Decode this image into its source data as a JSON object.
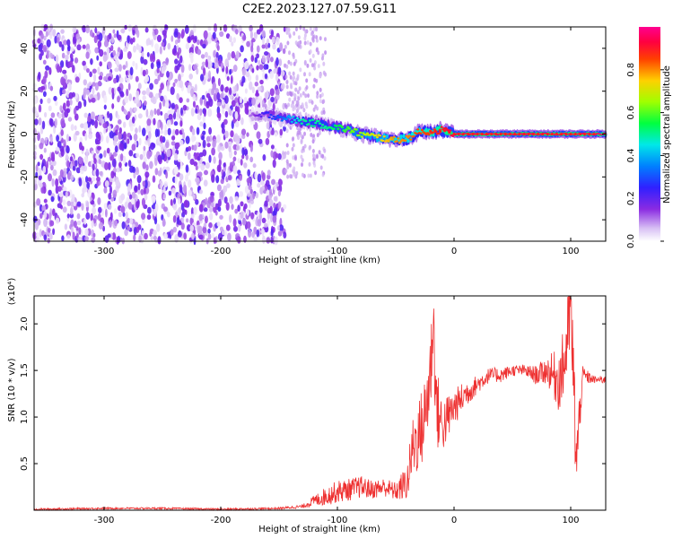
{
  "title": "C2E2.2023.127.07.59.G11",
  "colors": {
    "line": "#ee3030",
    "axis": "#000000",
    "colormap": [
      "#ffffff",
      "#cda8f0",
      "#8a2be2",
      "#3a00ff",
      "#0060ff",
      "#00e0ff",
      "#00ff60",
      "#7fff00",
      "#ffff00",
      "#ff8000",
      "#ff0000",
      "#ff00a0"
    ]
  },
  "chart_data": [
    {
      "type": "heatmap",
      "title": "C2E2.2023.127.07.59.G11",
      "xlabel": "Height of straight line (km)",
      "ylabel": "Frequency (Hz)",
      "xlim": [
        -360,
        130
      ],
      "ylim": [
        -50,
        50
      ],
      "x_ticks": [
        -300,
        -200,
        -100,
        0,
        100
      ],
      "x_tick_labels": [
        "-300",
        "-200",
        "-100",
        "0",
        "100"
      ],
      "y_ticks": [
        -40,
        -20,
        0,
        20,
        40
      ],
      "y_tick_labels": [
        "-40",
        "-20",
        "0",
        "20",
        "40"
      ],
      "colorbar": {
        "label": "Normalized spectral amplitude",
        "range": [
          0,
          1
        ],
        "ticks": [
          0.0,
          0.2,
          0.4,
          0.6,
          0.8
        ],
        "tick_labels": [
          "0.0",
          "0.2",
          "0.4",
          "0.6",
          "0.8"
        ]
      },
      "regions": [
        {
          "description_x": [
            -360,
            -145
          ],
          "freq_range": [
            -50,
            50
          ],
          "amplitude": [
            0.0,
            0.2
          ]
        },
        {
          "description_x": [
            -145,
            -110
          ],
          "freq_range": [
            -20,
            50
          ],
          "amplitude": [
            0.0,
            0.1
          ]
        }
      ],
      "ridge": {
        "x": [
          -175,
          -160,
          -150,
          -140,
          -130,
          -120,
          -110,
          -100,
          -90,
          -80,
          -70,
          -60,
          -50,
          -40,
          -30,
          -20,
          -10,
          0,
          20,
          40,
          60,
          80,
          100,
          120,
          130
        ],
        "freq": [
          8,
          9,
          8,
          7,
          6,
          5,
          4,
          3,
          2,
          0,
          -1,
          -2,
          -3,
          -2,
          1,
          1,
          2,
          0,
          0,
          0,
          0,
          0,
          0,
          0,
          0
        ],
        "amplitude": [
          0.1,
          0.25,
          0.3,
          0.4,
          0.5,
          0.5,
          0.5,
          0.55,
          0.6,
          0.65,
          0.7,
          0.75,
          0.8,
          0.8,
          0.85,
          0.85,
          0.9,
          0.95,
          0.95,
          0.95,
          0.95,
          0.95,
          0.95,
          0.95,
          0.95
        ]
      }
    },
    {
      "type": "line",
      "xlabel": "Height of straight line (km)",
      "ylabel": "SNR (10 * v/v)",
      "y_multiplier_label": "(x10⁴)",
      "xlim": [
        -360,
        130
      ],
      "ylim": [
        0,
        2.3
      ],
      "x_ticks": [
        -300,
        -200,
        -100,
        0,
        100
      ],
      "x_tick_labels": [
        "-300",
        "-200",
        "-100",
        "0",
        "100"
      ],
      "y_ticks": [
        0.5,
        1.0,
        1.5,
        2.0
      ],
      "y_tick_labels": [
        "0.5",
        "1.0",
        "1.5",
        "2.0"
      ],
      "series": [
        {
          "x": [
            -360,
            -300,
            -250,
            -200,
            -150,
            -130,
            -120,
            -110,
            -100,
            -90,
            -80,
            -70,
            -60,
            -50,
            -40,
            -35,
            -30,
            -25,
            -20,
            -18,
            -15,
            -10,
            -5,
            0,
            10,
            20,
            30,
            40,
            50,
            60,
            70,
            80,
            90,
            95,
            100,
            105,
            110,
            120,
            130
          ],
          "y": [
            0.01,
            0.02,
            0.02,
            0.01,
            0.02,
            0.04,
            0.1,
            0.15,
            0.2,
            0.22,
            0.25,
            0.22,
            0.25,
            0.2,
            0.3,
            0.7,
            0.8,
            1.0,
            1.5,
            2.1,
            1.1,
            0.9,
            1.0,
            1.1,
            1.25,
            1.35,
            1.45,
            1.45,
            1.5,
            1.5,
            1.45,
            1.5,
            1.4,
            1.6,
            2.2,
            0.5,
            1.45,
            1.4,
            1.4
          ],
          "noise": [
            0.01,
            0.01,
            0.01,
            0.01,
            0.01,
            0.02,
            0.06,
            0.1,
            0.12,
            0.12,
            0.12,
            0.1,
            0.1,
            0.1,
            0.2,
            0.35,
            0.4,
            0.45,
            0.5,
            0.5,
            0.45,
            0.3,
            0.25,
            0.2,
            0.15,
            0.1,
            0.08,
            0.08,
            0.06,
            0.06,
            0.1,
            0.15,
            0.35,
            0.4,
            0.5,
            0.5,
            0.1,
            0.04,
            0.04
          ]
        }
      ]
    }
  ]
}
